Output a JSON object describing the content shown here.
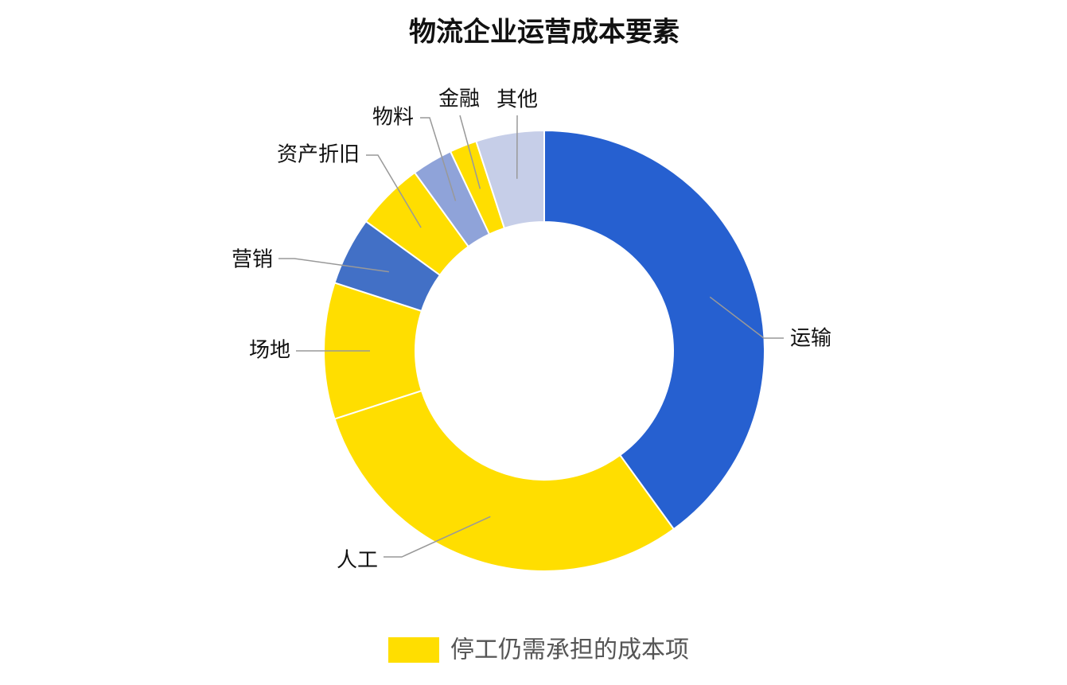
{
  "chart_data": {
    "type": "donut",
    "title": "物流企业运营成本要素",
    "categories": [
      "运输",
      "人工",
      "场地",
      "营销",
      "资产折旧",
      "物料",
      "金融",
      "其他"
    ],
    "values": [
      40,
      30,
      10,
      5,
      5,
      3,
      2,
      5
    ],
    "colors": [
      "#2660d0",
      "#ffde00",
      "#ffde00",
      "#4270c6",
      "#ffde00",
      "#8fa3d9",
      "#ffde00",
      "#c6cee8"
    ],
    "legend": {
      "label": "停工仍需承担的成本项",
      "color": "#ffde00"
    }
  }
}
